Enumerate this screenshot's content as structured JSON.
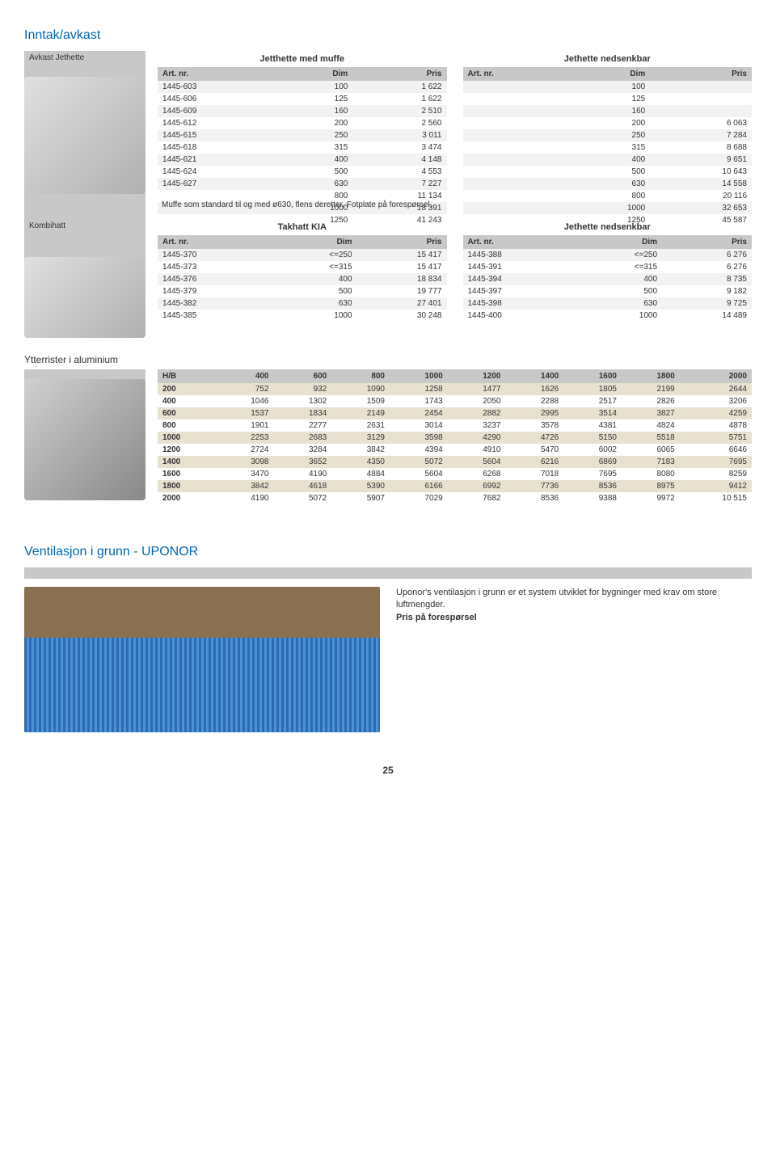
{
  "page_number": "25",
  "section1": {
    "title": "Inntak/avkast",
    "row_label": "Avkast Jethette",
    "leftTable": {
      "title": "Jetthette med muffe",
      "columns": [
        "Art. nr.",
        "Dim",
        "Pris"
      ],
      "rows": [
        [
          "1445-603",
          "100",
          "1 622"
        ],
        [
          "1445-606",
          "125",
          "1 622"
        ],
        [
          "1445-609",
          "160",
          "2 510"
        ],
        [
          "1445-612",
          "200",
          "2 560"
        ],
        [
          "1445-615",
          "250",
          "3 011"
        ],
        [
          "1445-618",
          "315",
          "3 474"
        ],
        [
          "1445-621",
          "400",
          "4 148"
        ],
        [
          "1445-624",
          "500",
          "4 553"
        ],
        [
          "1445-627",
          "630",
          "7 227"
        ],
        [
          "",
          "800",
          "11 134"
        ],
        [
          "",
          "1000",
          "18 391"
        ],
        [
          "",
          "1250",
          "41 243"
        ]
      ]
    },
    "rightTable": {
      "title": "Jethette nedsenkbar",
      "columns": [
        "Art. nr.",
        "Dim",
        "Pris"
      ],
      "rows": [
        [
          "",
          "100",
          ""
        ],
        [
          "",
          "125",
          ""
        ],
        [
          "",
          "160",
          ""
        ],
        [
          "",
          "200",
          "6 063"
        ],
        [
          "",
          "250",
          "7 284"
        ],
        [
          "",
          "315",
          "8 688"
        ],
        [
          "",
          "400",
          "9 651"
        ],
        [
          "",
          "500",
          "10 643"
        ],
        [
          "",
          "630",
          "14 558"
        ],
        [
          "",
          "800",
          "20 116"
        ],
        [
          "",
          "1000",
          "32 653"
        ],
        [
          "",
          "1250",
          "45 587"
        ]
      ]
    },
    "note": "Muffe som standard til og med ø630, flens deretter. Fotplate på forespørsel."
  },
  "section2": {
    "row_label": "Kombihatt",
    "leftTable": {
      "title": "Takhatt KIA",
      "columns": [
        "Art. nr.",
        "Dim",
        "Pris"
      ],
      "rows": [
        [
          "1445-370",
          "<=250",
          "15 417"
        ],
        [
          "1445-373",
          "<=315",
          "15 417"
        ],
        [
          "1445-376",
          "400",
          "18 834"
        ],
        [
          "1445-379",
          "500",
          "19 777"
        ],
        [
          "1445-382",
          "630",
          "27 401"
        ],
        [
          "1445-385",
          "1000",
          "30 248"
        ]
      ]
    },
    "rightTable": {
      "title": "Jethette nedsenkbar",
      "columns": [
        "Art. nr.",
        "Dim",
        "Pris"
      ],
      "rows": [
        [
          "1445-388",
          "<=250",
          "6 276"
        ],
        [
          "1445-391",
          "<=315",
          "6 276"
        ],
        [
          "1445-394",
          "400",
          "8 735"
        ],
        [
          "1445-397",
          "500",
          "9 182"
        ],
        [
          "1445-398",
          "630",
          "9 725"
        ],
        [
          "1445-400",
          "1000",
          "14 489"
        ]
      ]
    }
  },
  "section3": {
    "row_label": "Ytterrister i aluminium",
    "matrix": {
      "hb_label": "H/B",
      "cols": [
        "400",
        "600",
        "800",
        "1000",
        "1200",
        "1400",
        "1600",
        "1800",
        "2000"
      ],
      "rows": [
        {
          "h": "200",
          "v": [
            "752",
            "932",
            "1090",
            "1258",
            "1477",
            "1626",
            "1805",
            "2199",
            "2644"
          ]
        },
        {
          "h": "400",
          "v": [
            "1046",
            "1302",
            "1509",
            "1743",
            "2050",
            "2288",
            "2517",
            "2826",
            "3206"
          ]
        },
        {
          "h": "600",
          "v": [
            "1537",
            "1834",
            "2149",
            "2454",
            "2882",
            "2995",
            "3514",
            "3827",
            "4259"
          ]
        },
        {
          "h": "800",
          "v": [
            "1901",
            "2277",
            "2631",
            "3014",
            "3237",
            "3578",
            "4381",
            "4824",
            "4878"
          ]
        },
        {
          "h": "1000",
          "v": [
            "2253",
            "2683",
            "3129",
            "3598",
            "4290",
            "4726",
            "5150",
            "5518",
            "5751"
          ]
        },
        {
          "h": "1200",
          "v": [
            "2724",
            "3284",
            "3842",
            "4394",
            "4910",
            "5470",
            "6002",
            "6065",
            "6646"
          ]
        },
        {
          "h": "1400",
          "v": [
            "3098",
            "3652",
            "4350",
            "5072",
            "5604",
            "6216",
            "6869",
            "7183",
            "7695"
          ]
        },
        {
          "h": "1600",
          "v": [
            "3470",
            "4190",
            "4884",
            "5604",
            "6268",
            "7018",
            "7695",
            "8080",
            "8259"
          ]
        },
        {
          "h": "1800",
          "v": [
            "3842",
            "4618",
            "5390",
            "6166",
            "6992",
            "7736",
            "8536",
            "8975",
            "9412"
          ]
        },
        {
          "h": "2000",
          "v": [
            "4190",
            "5072",
            "5907",
            "7029",
            "7682",
            "8536",
            "9388",
            "9972",
            "10 515"
          ]
        }
      ]
    }
  },
  "section4": {
    "title": "Ventilasjon i grunn - UPONOR",
    "text1": "Uponor's ventilasjon i grunn er et system utviklet for bygninger med krav om store luftmengder.",
    "text2": "Pris på forespørsel"
  }
}
